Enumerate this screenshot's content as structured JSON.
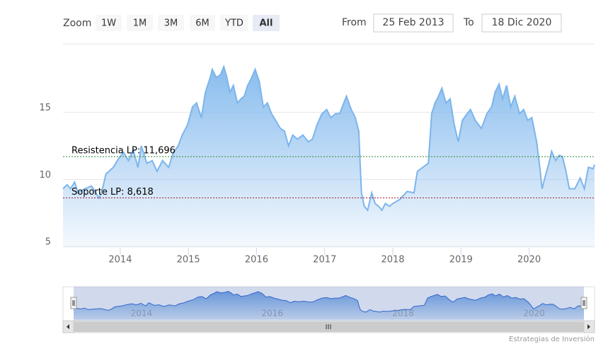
{
  "chart_data": {
    "type": "area",
    "range_selector": {
      "label": "Zoom",
      "buttons": [
        "1W",
        "1M",
        "3M",
        "6M",
        "YTD",
        "All"
      ],
      "selected": 5,
      "from_label": "From",
      "from": "25 Feb 2013",
      "to_label": "To",
      "to": "18 Dic 2020"
    },
    "credits": "Estrategias de Inversión",
    "color": "#7cb5ec",
    "grid": true,
    "xlim": [
      2013.16,
      2020.96
    ],
    "xticks": [
      2014,
      2015,
      2016,
      2017,
      2018,
      2019,
      2020
    ],
    "ylim": [
      4.9,
      20.1
    ],
    "yticks": [
      5,
      10,
      15
    ],
    "plot_lines": [
      {
        "value": 11.696,
        "label": "Resistencia LP: 11,696",
        "color": "#2e8b2e"
      },
      {
        "value": 8.618,
        "label": "Soporte LP: 8,618",
        "color": "#a01c2c"
      }
    ],
    "navigator": {
      "xticks": [
        2014,
        2016,
        2018,
        2020
      ],
      "ylim": [
        4,
        20
      ]
    },
    "x": [
      2013.16,
      2013.22,
      2013.27,
      2013.33,
      2013.38,
      2013.48,
      2013.58,
      2013.69,
      2013.74,
      2013.79,
      2013.9,
      2013.98,
      2014.05,
      2014.12,
      2014.19,
      2014.26,
      2014.31,
      2014.39,
      2014.47,
      2014.54,
      2014.62,
      2014.71,
      2014.78,
      2014.85,
      2014.91,
      2014.99,
      2015.06,
      2015.12,
      2015.19,
      2015.25,
      2015.32,
      2015.35,
      2015.41,
      2015.47,
      2015.52,
      2015.56,
      2015.61,
      2015.66,
      2015.72,
      2015.77,
      2015.82,
      2015.87,
      2015.93,
      2015.98,
      2016.04,
      2016.1,
      2016.16,
      2016.22,
      2016.28,
      2016.35,
      2016.41,
      2016.47,
      2016.53,
      2016.6,
      2016.68,
      2016.76,
      2016.82,
      2016.89,
      2016.96,
      2017.03,
      2017.09,
      2017.16,
      2017.22,
      2017.28,
      2017.32,
      2017.39,
      2017.45,
      2017.5,
      2017.52,
      2017.54,
      2017.58,
      2017.63,
      2017.69,
      2017.74,
      2017.79,
      2017.84,
      2017.89,
      2017.95,
      2018.0,
      2018.1,
      2018.21,
      2018.31,
      2018.36,
      2018.44,
      2018.52,
      2018.57,
      2018.62,
      2018.67,
      2018.72,
      2018.78,
      2018.84,
      2018.9,
      2018.96,
      2019.02,
      2019.09,
      2019.14,
      2019.21,
      2019.3,
      2019.38,
      2019.45,
      2019.5,
      2019.56,
      2019.61,
      2019.67,
      2019.73,
      2019.79,
      2019.86,
      2019.92,
      2019.98,
      2020.04,
      2020.11,
      2020.15,
      2020.19,
      2020.23,
      2020.29,
      2020.33,
      2020.39,
      2020.44,
      2020.49,
      2020.54,
      2020.59,
      2020.67,
      2020.75,
      2020.81,
      2020.87,
      2020.94,
      2020.96
    ],
    "values": [
      9.3,
      9.6,
      9.3,
      9.8,
      9.0,
      9.3,
      9.5,
      8.6,
      9.3,
      10.4,
      10.9,
      11.6,
      12.0,
      11.4,
      12.2,
      10.9,
      12.5,
      11.2,
      11.4,
      10.6,
      11.4,
      10.9,
      12.0,
      12.5,
      13.3,
      14.1,
      15.4,
      15.7,
      14.6,
      16.5,
      17.6,
      18.2,
      17.6,
      17.8,
      18.4,
      17.7,
      16.5,
      17.0,
      15.7,
      16.0,
      16.2,
      17.0,
      17.6,
      18.2,
      17.3,
      15.4,
      15.7,
      14.9,
      14.4,
      13.8,
      13.6,
      12.5,
      13.3,
      13.0,
      13.3,
      12.8,
      13.0,
      14.1,
      14.9,
      15.2,
      14.6,
      14.9,
      14.9,
      15.7,
      16.2,
      15.2,
      14.6,
      13.6,
      11.2,
      9.0,
      8.0,
      7.7,
      9.0,
      8.2,
      8.0,
      7.7,
      8.2,
      8.0,
      8.2,
      8.5,
      9.1,
      9.0,
      10.6,
      10.9,
      11.2,
      14.9,
      15.7,
      16.2,
      16.8,
      15.7,
      16.0,
      14.1,
      12.8,
      14.4,
      14.9,
      15.2,
      14.4,
      13.8,
      14.9,
      15.4,
      16.5,
      17.1,
      16.0,
      17.0,
      15.4,
      16.2,
      14.9,
      15.2,
      14.4,
      14.6,
      12.8,
      11.2,
      9.3,
      10.1,
      11.2,
      12.1,
      11.4,
      11.8,
      11.7,
      10.6,
      9.3,
      9.3,
      10.1,
      9.3,
      10.9,
      10.8,
      11.1
    ]
  }
}
